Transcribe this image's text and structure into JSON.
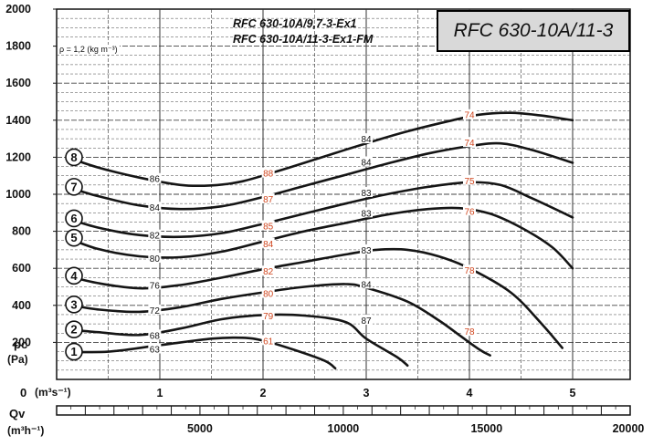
{
  "chart_data": {
    "type": "line",
    "title": "RFC 630-10A/11-3",
    "subtitle_lines": [
      "RFC 630-10A/9,7-3-Ex1",
      "RFC 630-10A/11-3-Ex1-FM"
    ],
    "density_note": "ρ = 1,2 (kg m⁻³)",
    "ylabel": "pc",
    "yunit": "(Pa)",
    "ylim": [
      0,
      2000
    ],
    "yticks": [
      200,
      400,
      600,
      800,
      1000,
      1200,
      1400,
      1600,
      1800,
      2000
    ],
    "xlabel": "Qv",
    "xlim": [
      0,
      5.5
    ],
    "xticks": [
      1,
      2,
      3,
      4,
      5
    ],
    "x_zero_label": "0",
    "xunit_primary": "(m³s⁻¹)",
    "xunit_secondary": "(m³h⁻¹)",
    "secondary_xticks": [
      5000,
      10000,
      15000,
      20000
    ],
    "grid": true,
    "series": [
      {
        "name": "1",
        "points": [
          [
            0.1,
            150
          ],
          [
            0.5,
            150
          ],
          [
            1.0,
            185
          ],
          [
            1.5,
            220
          ],
          [
            1.8,
            225
          ],
          [
            2.0,
            210
          ],
          [
            2.3,
            160
          ],
          [
            2.6,
            100
          ],
          [
            2.7,
            60
          ]
        ]
      },
      {
        "name": "2",
        "points": [
          [
            0.1,
            270
          ],
          [
            0.4,
            255
          ],
          [
            0.8,
            240
          ],
          [
            1.2,
            275
          ],
          [
            1.6,
            325
          ],
          [
            2.0,
            348
          ],
          [
            2.4,
            345
          ],
          [
            2.8,
            310
          ],
          [
            3.0,
            220
          ],
          [
            3.3,
            120
          ],
          [
            3.4,
            75
          ]
        ]
      },
      {
        "name": "3",
        "points": [
          [
            0.1,
            405
          ],
          [
            0.4,
            378
          ],
          [
            0.8,
            365
          ],
          [
            1.2,
            390
          ],
          [
            1.6,
            435
          ],
          [
            2.0,
            470
          ],
          [
            2.4,
            500
          ],
          [
            2.8,
            515
          ],
          [
            3.0,
            495
          ],
          [
            3.4,
            420
          ],
          [
            3.7,
            320
          ],
          [
            3.9,
            240
          ],
          [
            4.1,
            160
          ],
          [
            4.2,
            130
          ]
        ]
      },
      {
        "name": "4",
        "points": [
          [
            0.1,
            560
          ],
          [
            0.4,
            520
          ],
          [
            0.8,
            492
          ],
          [
            1.2,
            510
          ],
          [
            1.6,
            550
          ],
          [
            2.0,
            595
          ],
          [
            2.4,
            635
          ],
          [
            2.8,
            675
          ],
          [
            3.1,
            700
          ],
          [
            3.4,
            700
          ],
          [
            3.7,
            665
          ],
          [
            4.0,
            600
          ],
          [
            4.4,
            470
          ],
          [
            4.7,
            300
          ],
          [
            4.9,
            170
          ]
        ]
      },
      {
        "name": "5",
        "points": [
          [
            0.1,
            765
          ],
          [
            0.4,
            705
          ],
          [
            0.8,
            665
          ],
          [
            1.2,
            660
          ],
          [
            1.6,
            690
          ],
          [
            2.0,
            745
          ],
          [
            2.4,
            800
          ],
          [
            2.8,
            845
          ],
          [
            3.2,
            890
          ],
          [
            3.6,
            920
          ],
          [
            3.9,
            925
          ],
          [
            4.2,
            895
          ],
          [
            4.5,
            820
          ],
          [
            4.8,
            715
          ],
          [
            5.0,
            600
          ]
        ]
      },
      {
        "name": "6",
        "points": [
          [
            0.1,
            870
          ],
          [
            0.4,
            820
          ],
          [
            0.8,
            780
          ],
          [
            1.2,
            770
          ],
          [
            1.6,
            790
          ],
          [
            2.0,
            840
          ],
          [
            2.4,
            895
          ],
          [
            2.8,
            950
          ],
          [
            3.2,
            1000
          ],
          [
            3.6,
            1040
          ],
          [
            4.0,
            1065
          ],
          [
            4.3,
            1050
          ],
          [
            4.6,
            980
          ],
          [
            5.0,
            875
          ]
        ]
      },
      {
        "name": "7",
        "points": [
          [
            0.1,
            1040
          ],
          [
            0.4,
            990
          ],
          [
            0.8,
            940
          ],
          [
            1.2,
            920
          ],
          [
            1.6,
            935
          ],
          [
            2.0,
            985
          ],
          [
            2.4,
            1045
          ],
          [
            2.8,
            1105
          ],
          [
            3.2,
            1165
          ],
          [
            3.6,
            1220
          ],
          [
            4.0,
            1260
          ],
          [
            4.3,
            1275
          ],
          [
            4.6,
            1240
          ],
          [
            5.0,
            1170
          ]
        ]
      },
      {
        "name": "8",
        "points": [
          [
            0.1,
            1200
          ],
          [
            0.4,
            1145
          ],
          [
            0.8,
            1090
          ],
          [
            1.2,
            1050
          ],
          [
            1.5,
            1048
          ],
          [
            1.8,
            1070
          ],
          [
            2.2,
            1135
          ],
          [
            2.6,
            1205
          ],
          [
            3.0,
            1275
          ],
          [
            3.4,
            1340
          ],
          [
            3.8,
            1395
          ],
          [
            4.1,
            1430
          ],
          [
            4.4,
            1440
          ],
          [
            4.7,
            1425
          ],
          [
            5.0,
            1400
          ]
        ]
      }
    ],
    "annotations": [
      {
        "x": 0.95,
        "y": 1085,
        "text": "86",
        "color": "#111111"
      },
      {
        "x": 0.95,
        "y": 930,
        "text": "84",
        "color": "#111111"
      },
      {
        "x": 0.95,
        "y": 780,
        "text": "82",
        "color": "#111111"
      },
      {
        "x": 0.95,
        "y": 655,
        "text": "80",
        "color": "#111111"
      },
      {
        "x": 0.95,
        "y": 510,
        "text": "76",
        "color": "#111111"
      },
      {
        "x": 0.95,
        "y": 375,
        "text": "72",
        "color": "#111111"
      },
      {
        "x": 0.95,
        "y": 240,
        "text": "68",
        "color": "#111111"
      },
      {
        "x": 0.95,
        "y": 165,
        "text": "63",
        "color": "#111111"
      },
      {
        "x": 2.05,
        "y": 1115,
        "text": "88",
        "color": "#d0461e"
      },
      {
        "x": 2.05,
        "y": 975,
        "text": "87",
        "color": "#d0461e"
      },
      {
        "x": 2.05,
        "y": 830,
        "text": "85",
        "color": "#d0461e"
      },
      {
        "x": 2.05,
        "y": 735,
        "text": "84",
        "color": "#d0461e"
      },
      {
        "x": 2.05,
        "y": 585,
        "text": "82",
        "color": "#d0461e"
      },
      {
        "x": 2.05,
        "y": 465,
        "text": "80",
        "color": "#d0461e"
      },
      {
        "x": 2.05,
        "y": 345,
        "text": "79",
        "color": "#d0461e"
      },
      {
        "x": 2.05,
        "y": 210,
        "text": "61",
        "color": "#d0461e"
      },
      {
        "x": 3.0,
        "y": 1300,
        "text": "84",
        "color": "#111111"
      },
      {
        "x": 3.0,
        "y": 1175,
        "text": "84",
        "color": "#111111"
      },
      {
        "x": 3.0,
        "y": 1010,
        "text": "83",
        "color": "#111111"
      },
      {
        "x": 3.0,
        "y": 900,
        "text": "83",
        "color": "#111111"
      },
      {
        "x": 3.0,
        "y": 700,
        "text": "83",
        "color": "#111111"
      },
      {
        "x": 3.0,
        "y": 515,
        "text": "84",
        "color": "#111111"
      },
      {
        "x": 3.0,
        "y": 320,
        "text": "87",
        "color": "#111111"
      },
      {
        "x": 4.0,
        "y": 1430,
        "text": "74",
        "color": "#d0461e"
      },
      {
        "x": 4.0,
        "y": 1280,
        "text": "74",
        "color": "#d0461e"
      },
      {
        "x": 4.0,
        "y": 1075,
        "text": "75",
        "color": "#d0461e"
      },
      {
        "x": 4.0,
        "y": 910,
        "text": "76",
        "color": "#d0461e"
      },
      {
        "x": 4.0,
        "y": 590,
        "text": "78",
        "color": "#d0461e"
      },
      {
        "x": 4.0,
        "y": 260,
        "text": "78",
        "color": "#d0461e"
      }
    ]
  }
}
